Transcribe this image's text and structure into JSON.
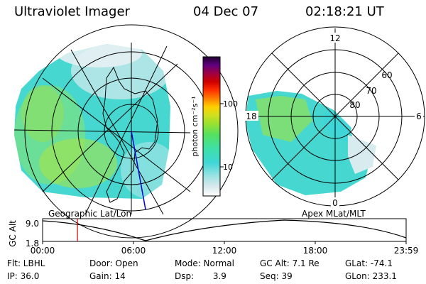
{
  "header": {
    "instrument": "Ultraviolet Imager",
    "date": "04 Dec 07",
    "time": "02:18:21 UT"
  },
  "left_panel": {
    "label": "Geographic Lat/Lon"
  },
  "right_panel": {
    "label": "Apex MLat/MLT",
    "mlt_labels": [
      "12",
      "18",
      "6",
      "0"
    ],
    "lat_labels": [
      "60",
      "70",
      "80"
    ]
  },
  "colorbar": {
    "unit": "photon cm⁻²s⁻¹",
    "ticks": [
      "100",
      "10"
    ],
    "scale": "log",
    "colors": [
      "#ffffff",
      "#d8e8ec",
      "#9fe3e3",
      "#3ed6d6",
      "#3ee0a8",
      "#55e060",
      "#9ae030",
      "#d0e020",
      "#ffd000",
      "#ff8000",
      "#ff3000",
      "#d00000",
      "#a00040",
      "#600080",
      "#200030"
    ]
  },
  "altitude_plot": {
    "ylabel": "GC Alt",
    "yticks": [
      "9.0",
      "1.8"
    ],
    "xticks": [
      "00:00",
      "06:00",
      "12:00",
      "18:00",
      "23:59"
    ],
    "current_time_hours": 2.3,
    "marker_color": "#cc0000"
  },
  "info": {
    "filter": "Flt: LBHL",
    "ip": "IP: 36.0",
    "door": "Door: Open",
    "gain": "Gain: 14",
    "mode": "Mode: Normal",
    "dsp": "Dsp:       3.9",
    "gc_alt": "GC Alt: 7.1 Re",
    "seq": "Seq: 39",
    "glat": "GLat: -74.1",
    "glon": "GLon: 233.1"
  }
}
